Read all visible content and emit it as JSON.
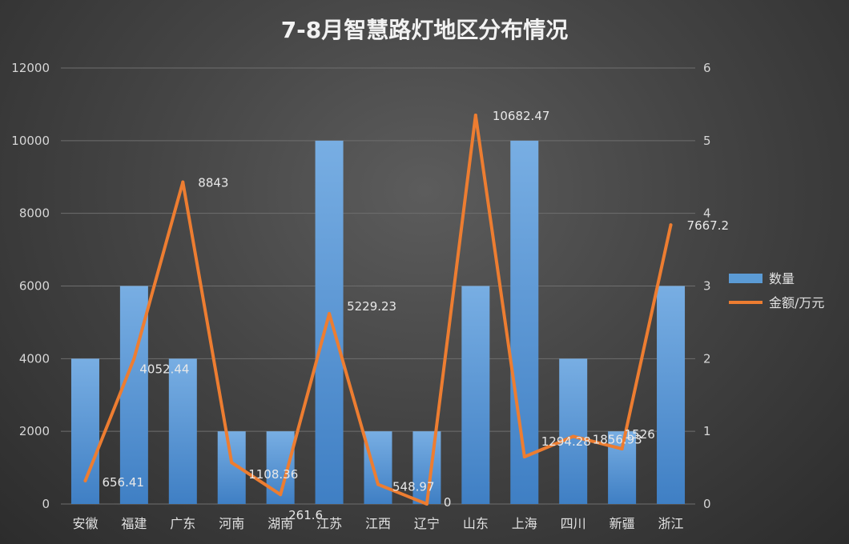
{
  "chart_data": {
    "type": "bar",
    "title": "7-8月智慧路灯地区分布情况",
    "categories": [
      "安徽",
      "福建",
      "广东",
      "河南",
      "湖南",
      "江苏",
      "江西",
      "辽宁",
      "山东",
      "上海",
      "四川",
      "新疆",
      "浙江"
    ],
    "series": [
      {
        "name": "数量",
        "type": "bar",
        "axis": "left",
        "values": [
          4000,
          6000,
          4000,
          2000,
          2000,
          10000,
          2000,
          2000,
          6000,
          10000,
          4000,
          2000,
          6000
        ],
        "color": "#5b9bd5"
      },
      {
        "name": "金额/万元",
        "type": "line",
        "axis": "right",
        "values": [
          0.32,
          2.0,
          4.43,
          0.57,
          0.13,
          2.62,
          0.27,
          0.0,
          5.35,
          0.65,
          0.93,
          0.76,
          3.84
        ],
        "data_labels": [
          "656.41",
          "4052.44",
          "8843",
          "1108.36",
          "261.6",
          "5229.23",
          "548.97",
          "0",
          "10682.47",
          "1294.28",
          "1856.93",
          "1526",
          "7667.2"
        ],
        "color": "#ed7d31"
      }
    ],
    "y_left": {
      "min": 0,
      "max": 12000,
      "ticks": [
        "0",
        "2000",
        "4000",
        "6000",
        "8000",
        "10000",
        "12000"
      ]
    },
    "y_right": {
      "min": 0,
      "max": 6,
      "ticks": [
        "0",
        "1",
        "2",
        "3",
        "4",
        "5",
        "6"
      ]
    },
    "grid": true,
    "legend_position": "right"
  }
}
